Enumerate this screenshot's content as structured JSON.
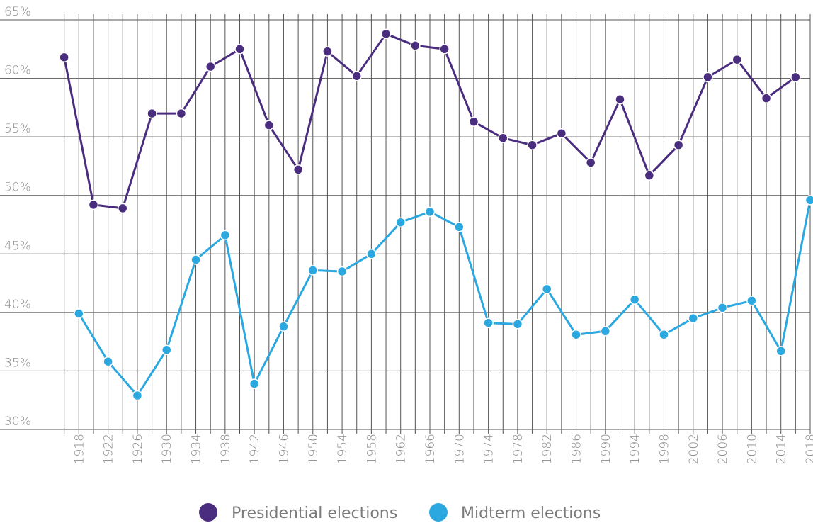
{
  "chart_data": {
    "type": "line",
    "title": "",
    "xlabel": "",
    "ylabel": "",
    "ylim": [
      30,
      65
    ],
    "grid": true,
    "legend_position": "bottom",
    "y_ticks": [
      "30%",
      "35%",
      "40%",
      "45%",
      "50%",
      "55%",
      "60%",
      "65%"
    ],
    "x_tick_labels": [
      "1918",
      "1922",
      "1926",
      "1930",
      "1934",
      "1938",
      "1942",
      "1946",
      "1950",
      "1954",
      "1958",
      "1962",
      "1966",
      "1970",
      "1974",
      "1978",
      "1982",
      "1986",
      "1990",
      "1994",
      "1998",
      "2002",
      "2006",
      "2010",
      "2014",
      "2018"
    ],
    "series": [
      {
        "name": "Presidential elections",
        "color": "#4b2d7f",
        "x": [
          1916,
          1920,
          1924,
          1928,
          1932,
          1936,
          1940,
          1944,
          1948,
          1952,
          1956,
          1960,
          1964,
          1968,
          1972,
          1976,
          1980,
          1984,
          1988,
          1992,
          1996,
          2000,
          2004,
          2008,
          2012,
          2016
        ],
        "y": [
          61.8,
          49.2,
          48.9,
          57.0,
          57.0,
          61.0,
          62.5,
          56.0,
          52.2,
          62.3,
          60.2,
          63.8,
          62.8,
          62.5,
          56.3,
          54.9,
          54.3,
          55.3,
          52.8,
          58.2,
          51.7,
          54.3,
          60.1,
          61.6,
          58.3,
          60.1
        ]
      },
      {
        "name": "Midterm elections",
        "color": "#2ba8e0",
        "x": [
          1918,
          1922,
          1926,
          1930,
          1934,
          1938,
          1942,
          1946,
          1950,
          1954,
          1958,
          1962,
          1966,
          1970,
          1974,
          1978,
          1982,
          1986,
          1990,
          1994,
          1998,
          2002,
          2006,
          2010,
          2014,
          2018
        ],
        "y": [
          39.9,
          35.8,
          32.9,
          36.8,
          44.5,
          46.6,
          33.9,
          38.8,
          43.6,
          43.5,
          45.0,
          47.7,
          48.6,
          47.3,
          39.1,
          39.0,
          42.0,
          38.1,
          38.4,
          41.1,
          38.1,
          39.5,
          40.4,
          41.0,
          36.7,
          49.6
        ]
      }
    ]
  }
}
